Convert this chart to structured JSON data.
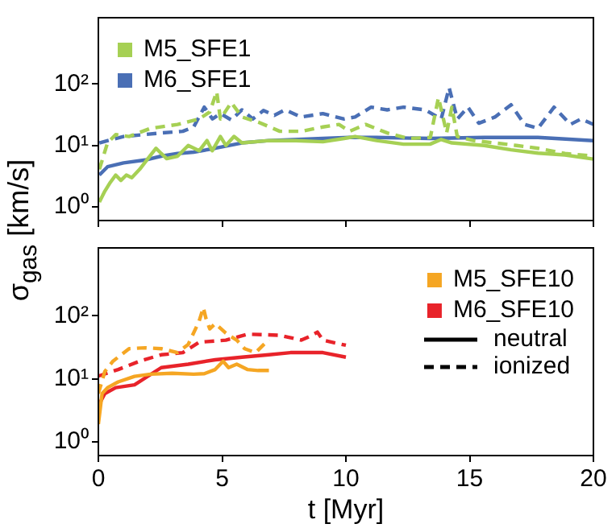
{
  "chart_data": [
    {
      "type": "line",
      "ylabel": "σ$_{gas}$ [km/s]",
      "log": "y",
      "marker": "none",
      "grid": false,
      "legend": "top left",
      "tick_labels": "y",
      "xlim": [
        0,
        20
      ],
      "xticks": [
        0,
        5,
        10,
        15,
        20
      ],
      "ylim": [
        0.6,
        1200
      ],
      "yticks": [
        {
          "value": 1,
          "label": "10⁰"
        },
        {
          "value": 10,
          "label": "10¹"
        },
        {
          "value": 100,
          "label": "10²"
        }
      ],
      "series": [
        {
          "name": "M5_SFE1",
          "color": "#a6d054",
          "line_style": "solid",
          "x": [
            0.04,
            0.26,
            0.48,
            0.7,
            0.91,
            1.13,
            1.35,
            1.67,
            2.0,
            2.33,
            2.54,
            2.76,
            3.2,
            3.63,
            4.07,
            4.39,
            4.6,
            4.93,
            5.15,
            5.48,
            5.8,
            6.9,
            7.98,
            9.07,
            9.93,
            10.37,
            11.24,
            12.33,
            13.4,
            13.85,
            14.28,
            15.59,
            16.67,
            17.76,
            18.85,
            20
          ],
          "values": [
            1.2,
            1.8,
            2.5,
            3.3,
            2.7,
            3.3,
            3.0,
            4.1,
            6.1,
            9.0,
            7.4,
            6.1,
            6.7,
            10,
            8.2,
            12,
            8.2,
            14,
            10,
            14,
            11,
            12,
            12,
            11.5,
            13,
            14,
            12,
            10.5,
            10.5,
            12.5,
            11,
            10,
            8.5,
            7.5,
            7,
            6
          ]
        },
        {
          "color": "#a6d054",
          "line_style": "dashed",
          "x": [
            0.04,
            0.37,
            0.7,
            1.24,
            2.11,
            3.2,
            4.07,
            4.5,
            4.78,
            4.93,
            5.37,
            5.8,
            6.46,
            7.33,
            8.2,
            9.07,
            9.72,
            10.15,
            10.8,
            11.67,
            12.54,
            13.41,
            13.74,
            14.07,
            14.28,
            14.5,
            15.15,
            16.02,
            16.89,
            17.76,
            18.85,
            20
          ],
          "values": [
            4.1,
            11,
            15,
            14,
            19,
            22,
            27,
            35,
            75,
            27,
            50,
            29,
            24,
            17,
            17,
            20,
            22,
            17,
            22,
            16,
            13,
            13.5,
            60,
            16,
            42,
            14,
            12,
            11,
            10,
            9,
            7.4,
            6.7
          ]
        },
        {
          "name": "M6_SFE1",
          "color": "#4a6fb5",
          "line_style": "solid",
          "x": [
            0.04,
            0.37,
            1.02,
            1.89,
            2.54,
            3.2,
            3.85,
            4.72,
            5.8,
            6.89,
            9.07,
            10.15,
            11.24,
            13.41,
            15.59,
            17.76,
            20
          ],
          "values": [
            3.3,
            4.5,
            5.2,
            5.8,
            6.7,
            7.4,
            7.8,
            9,
            11,
            12,
            13,
            13.5,
            13.5,
            13,
            13.5,
            13.5,
            12
          ]
        },
        {
          "color": "#4a6fb5",
          "line_style": "dashed",
          "x": [
            0.04,
            1.02,
            2.54,
            3.41,
            3.85,
            4.28,
            4.61,
            4.93,
            5.37,
            5.8,
            6.24,
            6.67,
            7.11,
            7.54,
            8.2,
            9.07,
            9.93,
            10.37,
            11.02,
            11.67,
            12.33,
            13.2,
            13.85,
            14.17,
            14.5,
            14.93,
            15.37,
            16.02,
            16.67,
            17.22,
            17.76,
            18.41,
            19.07,
            19.5,
            20
          ],
          "values": [
            11,
            14,
            16,
            17,
            20,
            42,
            27,
            33,
            26,
            38,
            27,
            37,
            31,
            38,
            29,
            33,
            27,
            29,
            42,
            38,
            42,
            38,
            27,
            87,
            27,
            42,
            23,
            29,
            46,
            22,
            19,
            42,
            22,
            27,
            22
          ]
        }
      ]
    },
    {
      "type": "line",
      "xlabel": "t [Myr]",
      "log": "y",
      "marker": "none",
      "grid": false,
      "legend": "top right",
      "xlim": [
        0,
        20
      ],
      "xticks": [
        0,
        5,
        10,
        15,
        20
      ],
      "ylim": [
        0.6,
        1200
      ],
      "yticks": [
        {
          "value": 1,
          "label": "10⁰"
        },
        {
          "value": 10,
          "label": "10¹"
        },
        {
          "value": 100,
          "label": "10²"
        }
      ],
      "annotations": [
        "neutral",
        "ionized"
      ],
      "series": [
        {
          "name": "M5_SFE10",
          "color": "#f5a623",
          "line_style": "solid",
          "x": [
            0,
            0.15,
            0.37,
            0.8,
            1.46,
            2.11,
            2.98,
            3.85,
            4.28,
            4.72,
            5.04,
            5.26,
            5.59,
            6.02,
            6.46,
            6.89
          ],
          "values": [
            1.9,
            5.8,
            7.2,
            8.9,
            10.9,
            11.8,
            12.2,
            11.8,
            12,
            14,
            19,
            15,
            17,
            14,
            13.5,
            13.5
          ]
        },
        {
          "color": "#f5a623",
          "line_style": "dashed",
          "x": [
            0,
            0.26,
            0.59,
            1.24,
            1.89,
            2.54,
            3.2,
            3.63,
            4.07,
            4.24,
            4.35,
            4.5,
            4.72,
            5.15,
            5.59,
            5.91,
            6.35,
            6.89
          ],
          "values": [
            5.8,
            13,
            19,
            30,
            31,
            30,
            26,
            35,
            82,
            135,
            90,
            62,
            75,
            53,
            41,
            30,
            26,
            42
          ]
        },
        {
          "name": "M6_SFE10",
          "color": "#e8232a",
          "line_style": "solid",
          "x": [
            0,
            0.26,
            0.7,
            1.46,
            2.54,
            3.63,
            4.72,
            5.8,
            6.89,
            7.76,
            9.07,
            10
          ],
          "values": [
            3.7,
            5.8,
            7.2,
            8,
            15,
            17,
            20,
            22,
            24,
            26,
            26,
            22
          ]
        },
        {
          "color": "#e8232a",
          "line_style": "dashed",
          "x": [
            0,
            0.8,
            1.67,
            2.54,
            3.41,
            4.07,
            5.15,
            6.02,
            7.33,
            8.2,
            8.63,
            8.85,
            9.07,
            10
          ],
          "values": [
            11,
            14,
            19,
            24,
            26,
            38,
            41,
            51,
            49,
            41,
            49,
            55,
            41,
            34
          ]
        }
      ]
    }
  ]
}
